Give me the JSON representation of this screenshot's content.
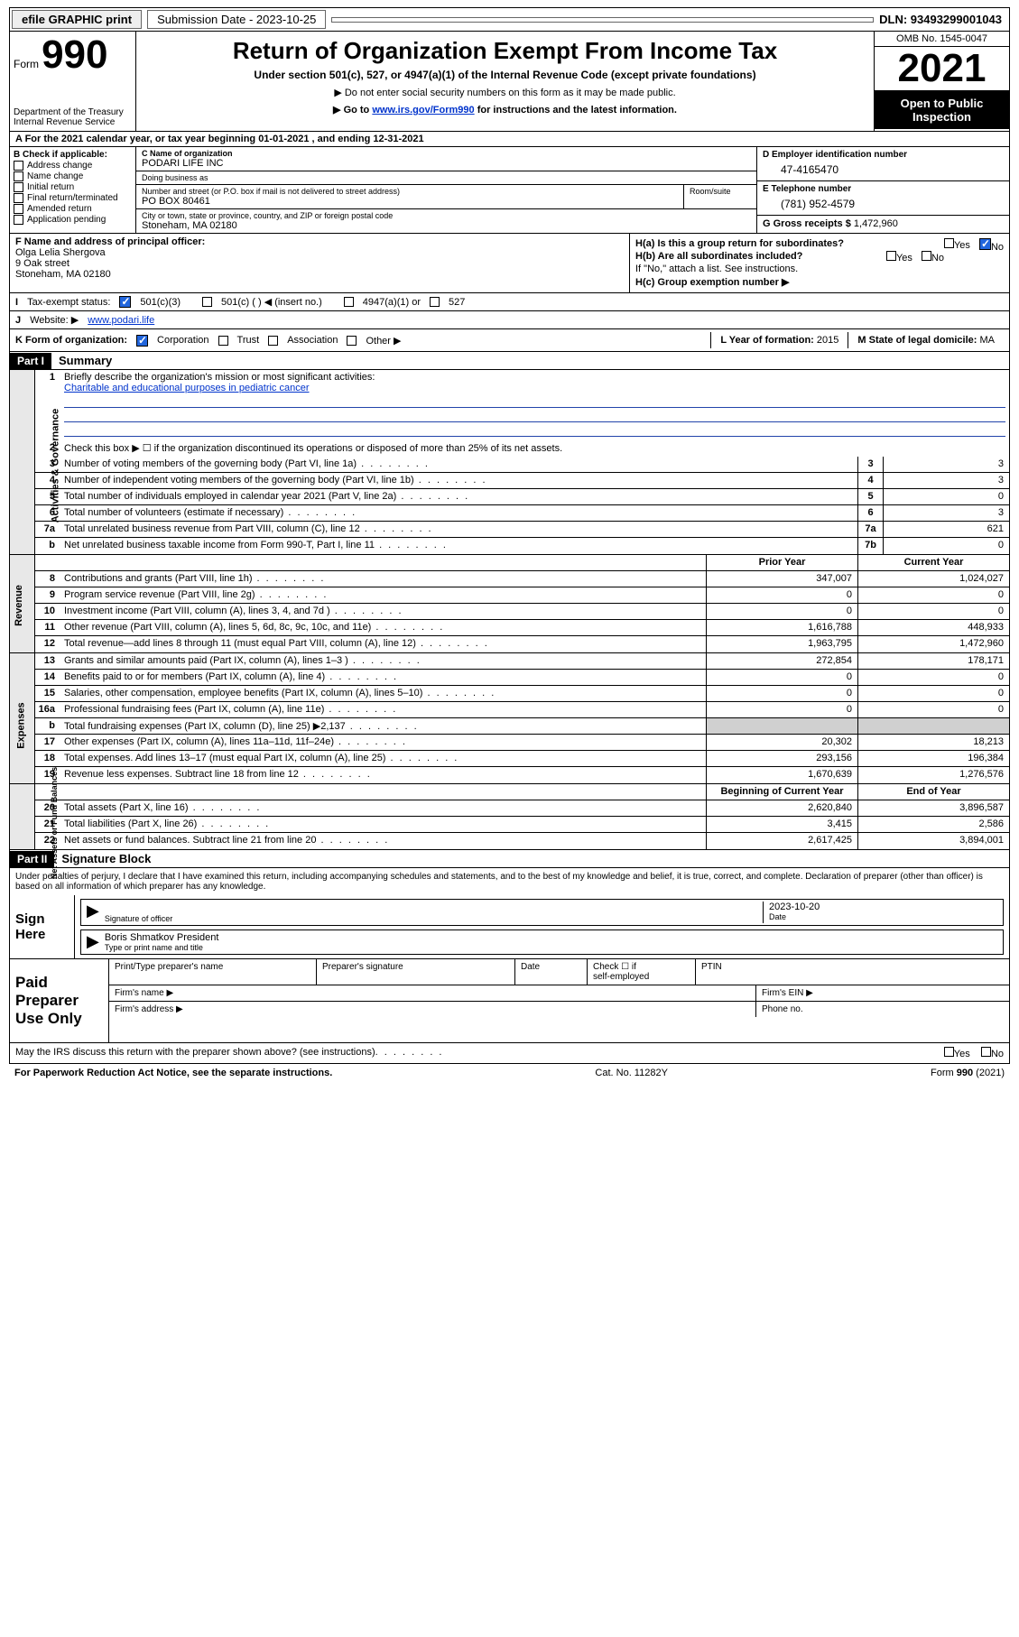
{
  "colors": {
    "link": "#0033cc",
    "check_fill": "#2266dd",
    "shade": "#d0d0d0",
    "side_shade": "#e8e8e8",
    "black": "#000",
    "white": "#fff"
  },
  "topbar": {
    "efile": "efile GRAPHIC print",
    "sub_label": "Submission Date - 2023-10-25",
    "dln": "DLN: 93493299001043"
  },
  "header": {
    "form_word": "Form",
    "form_num": "990",
    "dept": "Department of the Treasury\nInternal Revenue Service",
    "title": "Return of Organization Exempt From Income Tax",
    "sub": "Under section 501(c), 527, or 4947(a)(1) of the Internal Revenue Code (except private foundations)",
    "note1": "▶ Do not enter social security numbers on this form as it may be made public.",
    "note2_a": "▶ Go to ",
    "note2_link": "www.irs.gov/Form990",
    "note2_b": " for instructions and the latest information.",
    "omb": "OMB No. 1545-0047",
    "year": "2021",
    "inspect": "Open to Public Inspection"
  },
  "lineA": "A For the 2021 calendar year, or tax year beginning 01-01-2021   , and ending 12-31-2021",
  "B": {
    "title": "B Check if applicable:",
    "items": [
      "Address change",
      "Name change",
      "Initial return",
      "Final return/terminated",
      "Amended return",
      "Application pending"
    ]
  },
  "C": {
    "name_label": "C Name of organization",
    "name": "PODARI LIFE INC",
    "dba_label": "Doing business as",
    "dba": "",
    "addr_label": "Number and street (or P.O. box if mail is not delivered to street address)",
    "room_label": "Room/suite",
    "addr": "PO BOX 80461",
    "city_label": "City or town, state or province, country, and ZIP or foreign postal code",
    "city": "Stoneham, MA  02180"
  },
  "D": {
    "label": "D Employer identification number",
    "val": "47-4165470"
  },
  "E": {
    "label": "E Telephone number",
    "val": "(781) 952-4579"
  },
  "G": {
    "label": "G Gross receipts $",
    "val": "1,472,960"
  },
  "F": {
    "label": "F Name and address of principal officer:",
    "name": "Olga Lelia Shergova",
    "addr1": "9 Oak street",
    "addr2": "Stoneham, MA  02180"
  },
  "H": {
    "a": "H(a)  Is this a group return for subordinates?",
    "b": "H(b)  Are all subordinates included?",
    "b_note": "If \"No,\" attach a list. See instructions.",
    "c": "H(c)  Group exemption number ▶",
    "yes": "Yes",
    "no": "No",
    "a_answer": "No"
  },
  "I": {
    "label": "I",
    "title": "Tax-exempt status:",
    "c3": "501(c)(3)",
    "c": "501(c) (  ) ◀ (insert no.)",
    "a1": "4947(a)(1) or",
    "527": "527"
  },
  "J": {
    "label": "J",
    "title": "Website: ▶",
    "val": "www.podari.life"
  },
  "K": {
    "label": "K Form of organization:",
    "opts": [
      "Corporation",
      "Trust",
      "Association",
      "Other ▶"
    ],
    "checked": "Corporation"
  },
  "L": {
    "label": "L Year of formation:",
    "val": "2015"
  },
  "M": {
    "label": "M State of legal domicile:",
    "val": "MA"
  },
  "partI": {
    "bar": "Part I",
    "title": "Summary"
  },
  "summary": {
    "q1_label": "1",
    "q1": "Briefly describe the organization's mission or most significant activities:",
    "q1_val": "Charitable and educational purposes in pediatric cancer",
    "q2_label": "2",
    "q2": "Check this box ▶ ☐  if the organization discontinued its operations or disposed of more than 25% of its net assets.",
    "rows_gov": [
      {
        "n": "3",
        "d": "Number of voting members of the governing body (Part VI, line 1a)",
        "box": "3",
        "v": "3"
      },
      {
        "n": "4",
        "d": "Number of independent voting members of the governing body (Part VI, line 1b)",
        "box": "4",
        "v": "3"
      },
      {
        "n": "5",
        "d": "Total number of individuals employed in calendar year 2021 (Part V, line 2a)",
        "box": "5",
        "v": "0"
      },
      {
        "n": "6",
        "d": "Total number of volunteers (estimate if necessary)",
        "box": "6",
        "v": "3"
      },
      {
        "n": "7a",
        "d": "Total unrelated business revenue from Part VIII, column (C), line 12",
        "box": "7a",
        "v": "621"
      },
      {
        "n": "b",
        "d": "Net unrelated business taxable income from Form 990-T, Part I, line 11",
        "box": "7b",
        "v": "0"
      }
    ],
    "col_prior": "Prior Year",
    "col_curr": "Current Year",
    "rows_rev": [
      {
        "n": "8",
        "d": "Contributions and grants (Part VIII, line 1h)",
        "p": "347,007",
        "c": "1,024,027"
      },
      {
        "n": "9",
        "d": "Program service revenue (Part VIII, line 2g)",
        "p": "0",
        "c": "0"
      },
      {
        "n": "10",
        "d": "Investment income (Part VIII, column (A), lines 3, 4, and 7d )",
        "p": "0",
        "c": "0"
      },
      {
        "n": "11",
        "d": "Other revenue (Part VIII, column (A), lines 5, 6d, 8c, 9c, 10c, and 11e)",
        "p": "1,616,788",
        "c": "448,933"
      },
      {
        "n": "12",
        "d": "Total revenue—add lines 8 through 11 (must equal Part VIII, column (A), line 12)",
        "p": "1,963,795",
        "c": "1,472,960"
      }
    ],
    "rows_exp": [
      {
        "n": "13",
        "d": "Grants and similar amounts paid (Part IX, column (A), lines 1–3 )",
        "p": "272,854",
        "c": "178,171"
      },
      {
        "n": "14",
        "d": "Benefits paid to or for members (Part IX, column (A), line 4)",
        "p": "0",
        "c": "0"
      },
      {
        "n": "15",
        "d": "Salaries, other compensation, employee benefits (Part IX, column (A), lines 5–10)",
        "p": "0",
        "c": "0"
      },
      {
        "n": "16a",
        "d": "Professional fundraising fees (Part IX, column (A), line 11e)",
        "p": "0",
        "c": "0"
      },
      {
        "n": "b",
        "d": "Total fundraising expenses (Part IX, column (D), line 25) ▶2,137",
        "p": "",
        "c": "",
        "shade": true
      },
      {
        "n": "17",
        "d": "Other expenses (Part IX, column (A), lines 11a–11d, 11f–24e)",
        "p": "20,302",
        "c": "18,213"
      },
      {
        "n": "18",
        "d": "Total expenses. Add lines 13–17 (must equal Part IX, column (A), line 25)",
        "p": "293,156",
        "c": "196,384"
      },
      {
        "n": "19",
        "d": "Revenue less expenses. Subtract line 18 from line 12",
        "p": "1,670,639",
        "c": "1,276,576"
      }
    ],
    "col_begin": "Beginning of Current Year",
    "col_end": "End of Year",
    "rows_net": [
      {
        "n": "20",
        "d": "Total assets (Part X, line 16)",
        "p": "2,620,840",
        "c": "3,896,587"
      },
      {
        "n": "21",
        "d": "Total liabilities (Part X, line 26)",
        "p": "3,415",
        "c": "2,586"
      },
      {
        "n": "22",
        "d": "Net assets or fund balances. Subtract line 21 from line 20",
        "p": "2,617,425",
        "c": "3,894,001"
      }
    ],
    "side_gov": "Activities & Governance",
    "side_rev": "Revenue",
    "side_exp": "Expenses",
    "side_net": "Net Assets or Fund Balances"
  },
  "partII": {
    "bar": "Part II",
    "title": "Signature Block"
  },
  "sig": {
    "penalty": "Under penalties of perjury, I declare that I have examined this return, including accompanying schedules and statements, and to the best of my knowledge and belief, it is true, correct, and complete. Declaration of preparer (other than officer) is based on all information of which preparer has any knowledge.",
    "sign_here": "Sign Here",
    "sig_label": "Signature of officer",
    "date_label": "Date",
    "date": "2023-10-20",
    "name": "Boris Shmatkov President",
    "name_label": "Type or print name and title"
  },
  "prep": {
    "title": "Paid Preparer Use Only",
    "h1": "Print/Type preparer's name",
    "h2": "Preparer's signature",
    "h3": "Date",
    "h4a": "Check ☐ if",
    "h4b": "self-employed",
    "h5": "PTIN",
    "firm": "Firm's name  ▶",
    "ein": "Firm's EIN ▶",
    "addr": "Firm's address ▶",
    "phone": "Phone no."
  },
  "footer": {
    "discuss": "May the IRS discuss this return with the preparer shown above? (see instructions)",
    "yes": "Yes",
    "no": "No",
    "pra": "For Paperwork Reduction Act Notice, see the separate instructions.",
    "cat": "Cat. No. 11282Y",
    "form": "Form 990 (2021)"
  }
}
